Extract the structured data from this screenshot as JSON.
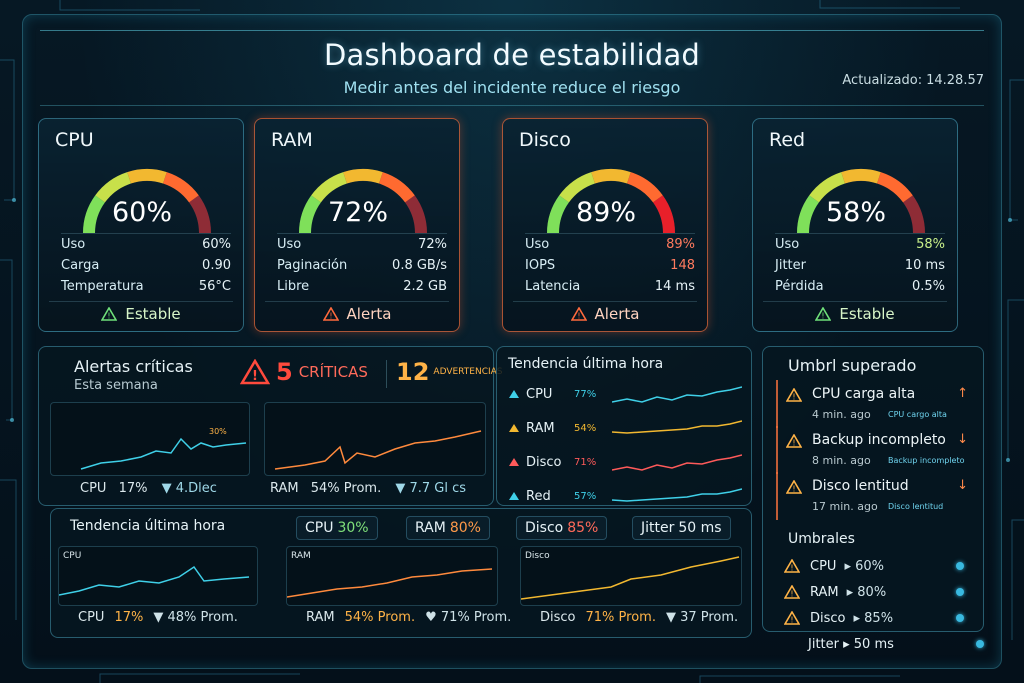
{
  "header": {
    "title": "Dashboard de estabilidad",
    "subtitle": "Medir antes del incidente reduce el riesgo",
    "updated_label": "Actualizado:",
    "updated_time": "14.28.57"
  },
  "cards": [
    {
      "title": "CPU",
      "gauge_value": "60%",
      "gauge_fraction": 0.6,
      "rows": [
        {
          "label": "Uso",
          "value": "60%"
        },
        {
          "label": "Carga",
          "value": "0.90"
        },
        {
          "label": "Temperatura",
          "value": "56°C"
        }
      ],
      "status": "Estable"
    },
    {
      "title": "RAM",
      "gauge_value": "72%",
      "gauge_fraction": 0.72,
      "rows": [
        {
          "label": "Uso",
          "value": "72%"
        },
        {
          "label": "Paginación",
          "value": "0.8 GB/s"
        },
        {
          "label": "Libre",
          "value": "2.2 GB"
        }
      ],
      "status": "Alerta"
    },
    {
      "title": "Disco",
      "gauge_value": "89%",
      "gauge_fraction": 0.89,
      "rows": [
        {
          "label": "Uso",
          "value": "89%"
        },
        {
          "label": "IOPS",
          "value": "148"
        },
        {
          "label": "Latencia",
          "value": "14 ms"
        }
      ],
      "status": "Alerta"
    },
    {
      "title": "Red",
      "gauge_value": "58%",
      "gauge_fraction": 0.58,
      "rows": [
        {
          "label": "Uso",
          "value": "58%"
        },
        {
          "label": "Jitter",
          "value": "10 ms"
        },
        {
          "label": "Pérdida",
          "value": "0.5%"
        }
      ],
      "status": "Estable"
    }
  ],
  "alerts_panel": {
    "title": "Alertas críticas",
    "subtitle": "Esta semana",
    "critical_count": "5",
    "critical_label": "CRÍTICAS",
    "warning_count": "12",
    "warning_label": "ADVERTENCIAS",
    "chart1": {
      "pct_label": "30%",
      "foot_label": "CPU",
      "foot_value": "17%",
      "foot_extra": "▼ 4.Dlec"
    },
    "chart2": {
      "foot_label": "RAM",
      "foot_value": "54% Prom.",
      "foot_extra": "▼ 7.7 Gl cs"
    }
  },
  "trend_small": {
    "title": "Tendencia última hora",
    "rows": [
      {
        "label": "CPU",
        "pct": "77%",
        "color": "#3fd0e8"
      },
      {
        "label": "RAM",
        "pct": "54%",
        "color": "#f2b830"
      },
      {
        "label": "Disco",
        "pct": "71%",
        "color": "#ff5a5a"
      },
      {
        "label": "Red",
        "pct": "57%",
        "color": "#3fd0e8"
      }
    ]
  },
  "trend_large": {
    "title": "Tendencia última hora",
    "pills": [
      {
        "label": "CPU",
        "value": "30%",
        "color": "#7fe07a"
      },
      {
        "label": "RAM",
        "value": "80%",
        "color": "#ff9a4a"
      },
      {
        "label": "Disco",
        "value": "85%",
        "color": "#ff6a5a"
      },
      {
        "label": "Jitter",
        "value": "50 ms",
        "color": "#e6f2f6"
      }
    ],
    "charts": [
      {
        "label": "CPU",
        "foot_a": "CPU",
        "foot_b": "17%",
        "foot_c": "▼ 48% Prom."
      },
      {
        "label": "RAM",
        "foot_a": "RAM",
        "foot_b": "54% Prom.",
        "foot_c": "♥ 71% Prom."
      },
      {
        "label": "Disco",
        "foot_a": "Disco",
        "foot_b": "71% Prom.",
        "foot_c": "▼ 37 Prom."
      }
    ]
  },
  "thresholds_exceeded": {
    "title": "Umbrl superado",
    "items": [
      {
        "title": "CPU carga alta",
        "time": "4 min. ago",
        "tag": "CPU cargo alta",
        "arrow": "↑"
      },
      {
        "title": "Backup incompleto",
        "time": "8 min. ago",
        "tag": "Backup incompleto",
        "arrow": "↓"
      },
      {
        "title": "Disco lentitud",
        "time": "17 min. ago",
        "tag": "Disco lentitud",
        "arrow": "↓"
      }
    ]
  },
  "thresholds": {
    "title": "Umbrales",
    "items": [
      {
        "label": "CPU",
        "value": "▸ 60%"
      },
      {
        "label": "RAM",
        "value": "▸ 80%"
      },
      {
        "label": "Disco",
        "value": "▸ 85%"
      }
    ],
    "jitter": "Jitter ▸ 50 ms"
  }
}
